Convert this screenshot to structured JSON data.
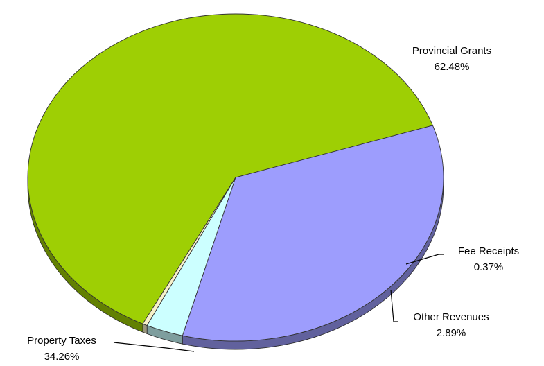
{
  "chart_data": {
    "type": "pie",
    "title": "",
    "slices": [
      {
        "name": "Provincial Grants",
        "value": 62.48,
        "label": "62.48%",
        "color": "#9ECF04"
      },
      {
        "name": "Fee Receipts",
        "value": 0.37,
        "label": "0.37%",
        "color": "#F7F1C9"
      },
      {
        "name": "Other Revenues",
        "value": 2.89,
        "label": "2.89%",
        "color": "#CCFFFF"
      },
      {
        "name": "Property Taxes",
        "value": 34.26,
        "label": "34.26%",
        "color": "#9D9DFD"
      }
    ],
    "three_d": true,
    "legend": "none"
  }
}
